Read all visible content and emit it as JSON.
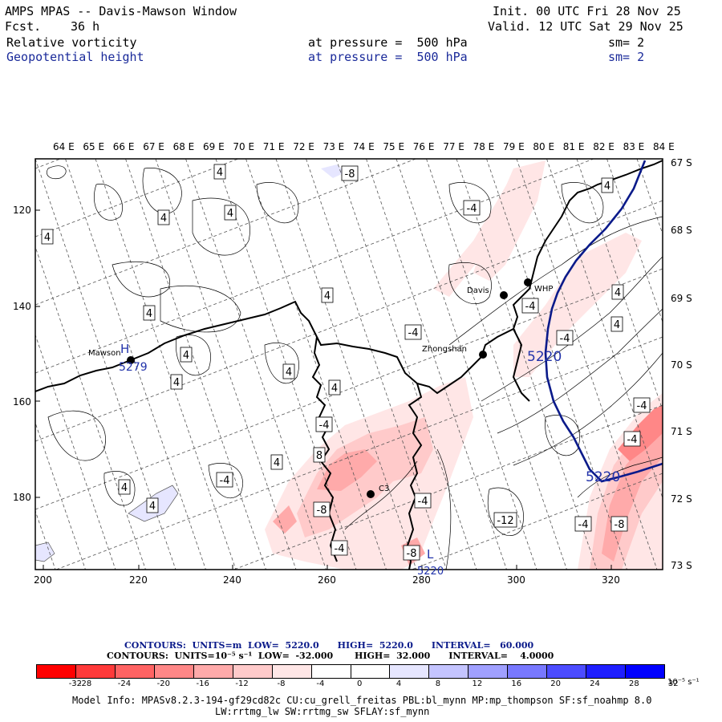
{
  "header": {
    "title": "AMPS MPAS -- Davis-Mawson Window",
    "fcst_label": "Fcst.",
    "fcst_value": "36 h",
    "init": "Init. 00 UTC Fri 28 Nov 25",
    "valid": "Valid. 12 UTC Sat 29 Nov 25",
    "field1": {
      "name": "Relative vorticity",
      "level": "at pressure =  500 hPa",
      "sm": "sm= 2"
    },
    "field2": {
      "name": "Geopotential height",
      "level": "at pressure =  500 hPa",
      "sm": "sm= 2"
    }
  },
  "map": {
    "lon_labels": [
      "64 E",
      "65 E",
      "66 E",
      "67 E",
      "68 E",
      "69 E",
      "70 E",
      "71 E",
      "72 E",
      "73 E",
      "74 E",
      "75 E",
      "76 E",
      "77 E",
      "78 E",
      "79 E",
      "80 E",
      "81 E",
      "82 E",
      "83 E",
      "84 E"
    ],
    "lat_labels": [
      "67 S",
      "68 S",
      "69 S",
      "70 S",
      "71 S",
      "72 S",
      "73 S"
    ],
    "grid_y_labels": [
      "120",
      "140",
      "160",
      "180"
    ],
    "grid_x_labels": [
      "200",
      "220",
      "240",
      "260",
      "280",
      "300",
      "320"
    ],
    "stations": [
      {
        "name": "Mawson",
        "extra": "H",
        "value": "5279"
      },
      {
        "name": "Davis"
      },
      {
        "name": "WHP"
      },
      {
        "name": "Zhongshan"
      },
      {
        "name": "C3"
      }
    ],
    "contour_labels": [
      "4",
      "4",
      "4",
      "4",
      "-8",
      "4",
      "4",
      "4",
      "4",
      "4",
      "4",
      "4",
      "-4",
      "-4",
      "-4",
      "4",
      "4",
      "4",
      "-4",
      "4",
      "-4",
      "-4",
      "-4",
      "-8",
      "-12",
      "-4",
      "4",
      "4",
      "8",
      "-8",
      "-4",
      "-8",
      "-4",
      "-4",
      "4",
      "4",
      "4",
      "-4",
      "4"
    ],
    "height_labels": [
      "5220",
      "5220"
    ],
    "low_marker": "L",
    "low_value": "5220"
  },
  "contour_info": {
    "line1": "CONTOURS:  UNITS=m  LOW=  5220.0      HIGH=  5220.0      INTERVAL=   60.000",
    "line2": "CONTOURS:  UNITS=10⁻⁵ s⁻¹  LOW=  -32.000       HIGH=  32.000      INTERVAL=    4.0000"
  },
  "colorbar": {
    "colors": [
      "#ff0000",
      "#ff3a3a",
      "#ff6363",
      "#ff8787",
      "#ffaaaa",
      "#ffcaca",
      "#ffe6e6",
      "#ffffff",
      "#ffffff",
      "#e6e6ff",
      "#c4c4ff",
      "#a0a0ff",
      "#7878ff",
      "#4c4cff",
      "#1e1eff",
      "#0000ff"
    ],
    "ticks": [
      "-32",
      "-28",
      "-24",
      "-20",
      "-16",
      "-12",
      "-8",
      "-4",
      "0",
      "4",
      "8",
      "12",
      "16",
      "20",
      "24",
      "28",
      "32"
    ],
    "units": "10⁻⁵ s⁻¹"
  },
  "model_info": {
    "line1": "Model Info: MPASv8.2.3-194-gf29cd82c CU:cu_grell_freitas PBL:bl_mynn MP:mp_thompson SF:sf_noahmp 8.0",
    "line2": "LW:rrtmg_lw SW:rrtmg_sw SFLAY:sf_mynn"
  }
}
